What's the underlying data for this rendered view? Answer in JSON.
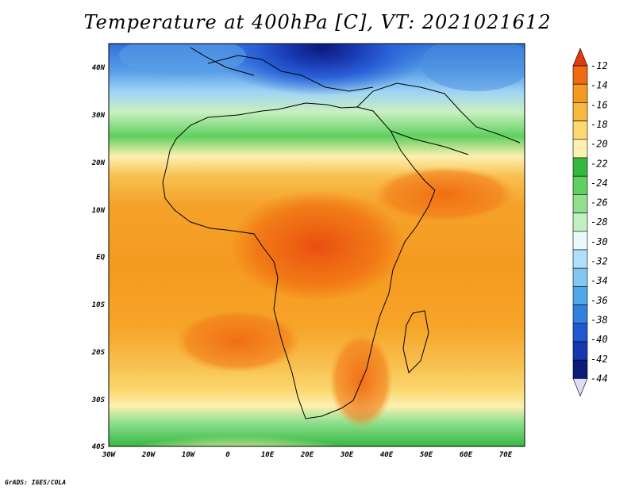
{
  "title": "Temperature at 400hPa [C], VT: 2021021612",
  "credit": "GrADS: IGES/COLA",
  "axes": {
    "x_ticks": [
      "30W",
      "20W",
      "10W",
      "0",
      "10E",
      "20E",
      "30E",
      "40E",
      "50E",
      "60E",
      "70E"
    ],
    "y_ticks": [
      "40N",
      "30N",
      "20N",
      "10N",
      "EQ",
      "10S",
      "20S",
      "30S",
      "40S"
    ]
  },
  "colorbar": {
    "levels": [
      "-12",
      "-14",
      "-16",
      "-18",
      "-20",
      "-22",
      "-24",
      "-26",
      "-28",
      "-30",
      "-32",
      "-34",
      "-36",
      "-38",
      "-40",
      "-42",
      "-44"
    ],
    "colors": [
      "#e03b10",
      "#f06a10",
      "#f59a20",
      "#f8b840",
      "#fbd870",
      "#fdf0b0",
      "#35b840",
      "#60d060",
      "#90e090",
      "#c0f0c0",
      "#e8fafa",
      "#b0e0f8",
      "#80c8f0",
      "#50a8e8",
      "#3080e0",
      "#1f58d0",
      "#1838b0",
      "#0c1a7a",
      "#dcdcf8"
    ]
  },
  "chart_data": {
    "type": "heatmap",
    "title": "Temperature at 400hPa [C], VT: 2021021612",
    "variable": "Temperature at 400hPa",
    "units": "C",
    "valid_time": "2021021612",
    "lon_range": [
      -30,
      75
    ],
    "lat_range": [
      -40,
      45
    ],
    "contour_levels": [
      -44,
      -42,
      -40,
      -38,
      -36,
      -34,
      -32,
      -30,
      -28,
      -26,
      -24,
      -22,
      -20,
      -18,
      -16,
      -14,
      -12
    ],
    "approx_field": [
      {
        "region": "Mediterranean / southern Europe",
        "value_range": [
          -40,
          -32
        ]
      },
      {
        "region": "North Africa / Sahara",
        "value_range": [
          -30,
          -26
        ]
      },
      {
        "region": "Sahel band ~15N-20N",
        "value_range": [
          -24,
          -20
        ]
      },
      {
        "region": "Central Africa / Congo basin",
        "value_range": [
          -14,
          -12
        ]
      },
      {
        "region": "Equatorial Atlantic & Indian Ocean",
        "value_range": [
          -16,
          -14
        ]
      },
      {
        "region": "South Atlantic ~20S",
        "value_range": [
          -14,
          -12
        ]
      },
      {
        "region": "Southern Ocean ~35S-40S",
        "value_range": [
          -26,
          -20
        ]
      }
    ]
  }
}
